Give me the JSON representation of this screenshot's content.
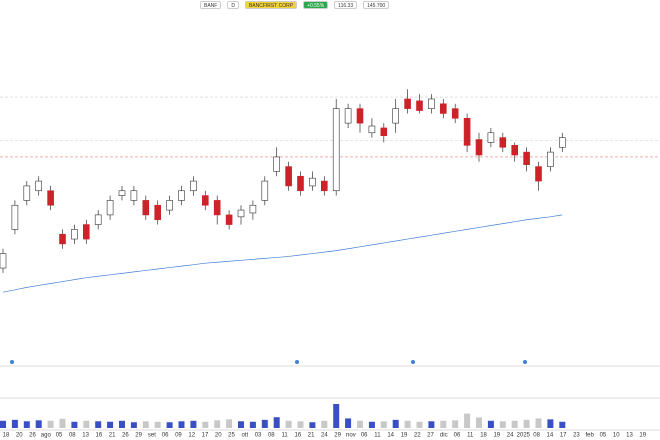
{
  "toolbar": {
    "ticker": "BANF",
    "period": "D",
    "company": "BANCFIRST CORP",
    "price": "116.33",
    "change": "+0.55%",
    "volume": "145.700"
  },
  "chart_data": {
    "type": "candlestick",
    "x_axis_labels": [
      "18",
      "20",
      "26",
      "ago",
      "05",
      "08",
      "13",
      "16",
      "21",
      "26",
      "29",
      "set",
      "06",
      "09",
      "12",
      "17",
      "20",
      "25",
      "ott",
      "03",
      "08",
      "11",
      "16",
      "21",
      "24",
      "29",
      "nov",
      "06",
      "11",
      "14",
      "19",
      "22",
      "27",
      "dic",
      "06",
      "11",
      "18",
      "19",
      "24",
      "2025",
      "08",
      "14",
      "17",
      "23",
      "feb",
      "05",
      "10",
      "13",
      "19"
    ],
    "open": [
      78,
      86,
      92,
      94,
      94,
      85,
      84,
      87,
      87,
      89,
      93,
      92,
      92,
      91,
      90,
      92,
      94,
      93,
      92,
      89,
      88.6,
      89.4,
      92,
      98,
      99,
      97,
      95,
      96,
      94,
      108,
      111,
      106,
      107,
      108,
      113,
      112.6,
      111,
      112,
      111,
      109,
      104.6,
      104,
      105,
      103.4,
      102,
      99,
      99,
      103
    ],
    "high": [
      82,
      92,
      96,
      97,
      95,
      86,
      87,
      88,
      90,
      93,
      95,
      95,
      93,
      92,
      93,
      95,
      97,
      94,
      93,
      90,
      91,
      92,
      97,
      103,
      100,
      98,
      98,
      97,
      113,
      112,
      112,
      109,
      108,
      113,
      115,
      114,
      114,
      113,
      112,
      110,
      106,
      107,
      106,
      104,
      103,
      100,
      103,
      106
    ],
    "low": [
      77,
      85,
      91,
      93,
      90,
      82,
      83,
      83,
      86,
      88,
      92,
      91,
      88,
      87,
      89,
      91,
      93,
      90,
      87,
      86,
      87,
      88,
      91,
      97,
      94,
      93,
      94,
      93,
      93,
      107,
      106,
      105,
      104,
      106,
      110,
      110,
      110,
      109,
      108,
      102,
      100,
      103,
      102,
      100,
      98,
      94,
      98,
      102
    ],
    "close": [
      81,
      91,
      95,
      96,
      91,
      83,
      86,
      84,
      89,
      92,
      94,
      94,
      89,
      88,
      92,
      94,
      96,
      91,
      89,
      87,
      90,
      91,
      96,
      101,
      95,
      94,
      96.6,
      94,
      111,
      111,
      108,
      107.4,
      105.4,
      111,
      111,
      110.6,
      113,
      110,
      109,
      103.4,
      101.4,
      106,
      103,
      101.4,
      99.4,
      96,
      102,
      105
    ],
    "volume": [
      30,
      34,
      28,
      32,
      30,
      38,
      26,
      30,
      28,
      26,
      30,
      24,
      28,
      26,
      24,
      28,
      30,
      26,
      32,
      36,
      28,
      26,
      34,
      45,
      30,
      28,
      24,
      30,
      100,
      40,
      30,
      26,
      28,
      34,
      30,
      26,
      28,
      30,
      32,
      60,
      44,
      30,
      28,
      30,
      34,
      40,
      36,
      26
    ],
    "ma": {
      "color": "#3f7fd6",
      "values": [
        73,
        73.5,
        74,
        74.4,
        74.8,
        75.2,
        75.6,
        76,
        76.3,
        76.6,
        76.9,
        77.2,
        77.5,
        77.8,
        78.1,
        78.4,
        78.7,
        79,
        79.2,
        79.4,
        79.6,
        79.8,
        80,
        80.2,
        80.4,
        80.7,
        81,
        81.3,
        81.6,
        82,
        82.4,
        82.8,
        83.2,
        83.6,
        84,
        84.4,
        84.8,
        85.2,
        85.6,
        86,
        86.4,
        86.8,
        87.2,
        87.6,
        88,
        88.3,
        88.6,
        89
      ]
    },
    "levels": [
      {
        "value": 113.4,
        "color": "#cccccc"
      },
      {
        "value": 104.4,
        "color": "#cccccc"
      },
      {
        "value": 101,
        "color": "#e08080"
      }
    ],
    "ylim": [
      60,
      131
    ],
    "volume_ylim": [
      0,
      100
    ],
    "up_color": "#ffffff",
    "down_color": "#cc2229",
    "volume_up_color": "#3a4fc4",
    "volume_down_color": "#c8c8c8"
  }
}
